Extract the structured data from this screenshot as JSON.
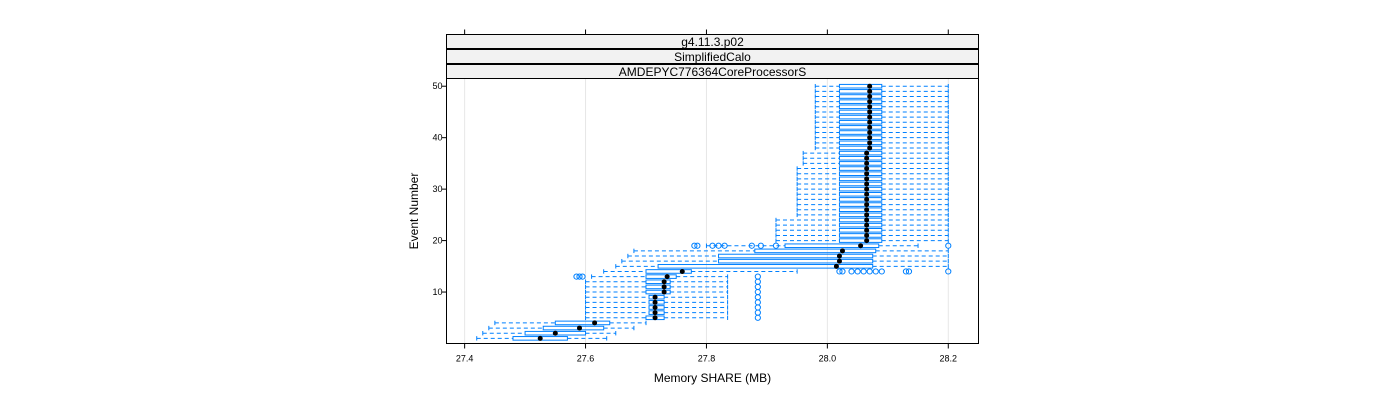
{
  "chart_data": {
    "type": "bwplot",
    "strips": [
      "g4.11.3.p02",
      "SimplifiedCalo",
      "AMDEPYC776364CoreProcessorS"
    ],
    "xlabel": "Memory SHARE (MB)",
    "ylabel": "Event Number",
    "xlim": [
      27.37,
      28.25
    ],
    "ylim": [
      0,
      51.5
    ],
    "xticks": [
      27.4,
      27.6,
      27.8,
      28.0,
      28.2
    ],
    "xtick_labels": [
      "27.4",
      "27.6",
      "27.8",
      "28.0",
      "28.2"
    ],
    "yticks": [
      10,
      20,
      30,
      40,
      50
    ],
    "ytick_labels": [
      "10",
      "20",
      "30",
      "40",
      "50"
    ],
    "grid": true,
    "colors": {
      "box": "#0080ff",
      "median": "#000000",
      "strip": "#f2f2f2"
    },
    "boxes": [
      {
        "event": 1,
        "min": 27.42,
        "q1": 27.48,
        "median": 27.525,
        "q3": 27.57,
        "max": 27.635,
        "outliers": []
      },
      {
        "event": 2,
        "min": 27.43,
        "q1": 27.5,
        "median": 27.55,
        "q3": 27.6,
        "max": 27.65,
        "outliers": []
      },
      {
        "event": 3,
        "min": 27.44,
        "q1": 27.53,
        "median": 27.59,
        "q3": 27.63,
        "max": 27.68,
        "outliers": []
      },
      {
        "event": 4,
        "min": 27.45,
        "q1": 27.55,
        "median": 27.615,
        "q3": 27.64,
        "max": 27.7,
        "outliers": []
      },
      {
        "event": 5,
        "min": 27.6,
        "q1": 27.7,
        "median": 27.715,
        "q3": 27.73,
        "max": 27.835,
        "outliers": [
          27.885
        ]
      },
      {
        "event": 6,
        "min": 27.6,
        "q1": 27.705,
        "median": 27.715,
        "q3": 27.73,
        "max": 27.835,
        "outliers": [
          27.885
        ]
      },
      {
        "event": 7,
        "min": 27.6,
        "q1": 27.705,
        "median": 27.715,
        "q3": 27.73,
        "max": 27.835,
        "outliers": [
          27.885
        ]
      },
      {
        "event": 8,
        "min": 27.6,
        "q1": 27.705,
        "median": 27.715,
        "q3": 27.73,
        "max": 27.835,
        "outliers": [
          27.885
        ]
      },
      {
        "event": 9,
        "min": 27.6,
        "q1": 27.705,
        "median": 27.715,
        "q3": 27.73,
        "max": 27.835,
        "outliers": [
          27.885
        ]
      },
      {
        "event": 10,
        "min": 27.6,
        "q1": 27.7,
        "median": 27.73,
        "q3": 27.74,
        "max": 27.835,
        "outliers": [
          27.885
        ]
      },
      {
        "event": 11,
        "min": 27.6,
        "q1": 27.7,
        "median": 27.73,
        "q3": 27.74,
        "max": 27.835,
        "outliers": [
          27.885
        ]
      },
      {
        "event": 12,
        "min": 27.6,
        "q1": 27.7,
        "median": 27.73,
        "q3": 27.74,
        "max": 27.835,
        "outliers": [
          27.885
        ]
      },
      {
        "event": 13,
        "min": 27.61,
        "q1": 27.7,
        "median": 27.735,
        "q3": 27.75,
        "max": 27.835,
        "outliers": [
          27.585,
          27.59,
          27.595,
          27.885
        ]
      },
      {
        "event": 14,
        "min": 27.63,
        "q1": 27.7,
        "median": 27.76,
        "q3": 27.775,
        "max": 27.95,
        "outliers": [
          28.02,
          28.025,
          28.04,
          28.05,
          28.06,
          28.07,
          28.08,
          28.09,
          28.13,
          28.135,
          28.2
        ]
      },
      {
        "event": 15,
        "min": 27.65,
        "q1": 27.72,
        "median": 28.015,
        "q3": 28.075,
        "max": 28.2,
        "outliers": []
      },
      {
        "event": 16,
        "min": 27.66,
        "q1": 27.82,
        "median": 28.02,
        "q3": 28.075,
        "max": 28.2,
        "outliers": []
      },
      {
        "event": 17,
        "min": 27.67,
        "q1": 27.82,
        "median": 28.02,
        "q3": 28.075,
        "max": 28.2,
        "outliers": []
      },
      {
        "event": 18,
        "min": 27.68,
        "q1": 27.88,
        "median": 28.025,
        "q3": 28.08,
        "max": 28.2,
        "outliers": []
      },
      {
        "event": 19,
        "min": 27.8,
        "q1": 27.93,
        "median": 28.055,
        "q3": 28.085,
        "max": 28.15,
        "outliers": [
          27.78,
          27.785,
          27.81,
          27.82,
          27.83,
          27.875,
          27.89,
          27.915,
          28.2
        ]
      },
      {
        "event": 20,
        "min": 27.915,
        "q1": 28.02,
        "median": 28.065,
        "q3": 28.09,
        "max": 28.2,
        "outliers": []
      },
      {
        "event": 21,
        "min": 27.915,
        "q1": 28.02,
        "median": 28.065,
        "q3": 28.09,
        "max": 28.2,
        "outliers": []
      },
      {
        "event": 22,
        "min": 27.915,
        "q1": 28.02,
        "median": 28.065,
        "q3": 28.09,
        "max": 28.2,
        "outliers": []
      },
      {
        "event": 23,
        "min": 27.915,
        "q1": 28.02,
        "median": 28.065,
        "q3": 28.09,
        "max": 28.2,
        "outliers": []
      },
      {
        "event": 24,
        "min": 27.915,
        "q1": 28.02,
        "median": 28.065,
        "q3": 28.09,
        "max": 28.2,
        "outliers": []
      },
      {
        "event": 25,
        "min": 27.95,
        "q1": 28.02,
        "median": 28.065,
        "q3": 28.09,
        "max": 28.2,
        "outliers": []
      },
      {
        "event": 26,
        "min": 27.95,
        "q1": 28.02,
        "median": 28.065,
        "q3": 28.09,
        "max": 28.2,
        "outliers": []
      },
      {
        "event": 27,
        "min": 27.95,
        "q1": 28.02,
        "median": 28.065,
        "q3": 28.09,
        "max": 28.2,
        "outliers": []
      },
      {
        "event": 28,
        "min": 27.95,
        "q1": 28.02,
        "median": 28.065,
        "q3": 28.09,
        "max": 28.2,
        "outliers": []
      },
      {
        "event": 29,
        "min": 27.95,
        "q1": 28.02,
        "median": 28.065,
        "q3": 28.09,
        "max": 28.2,
        "outliers": []
      },
      {
        "event": 30,
        "min": 27.95,
        "q1": 28.02,
        "median": 28.065,
        "q3": 28.09,
        "max": 28.2,
        "outliers": []
      },
      {
        "event": 31,
        "min": 27.95,
        "q1": 28.02,
        "median": 28.065,
        "q3": 28.09,
        "max": 28.2,
        "outliers": []
      },
      {
        "event": 32,
        "min": 27.95,
        "q1": 28.02,
        "median": 28.065,
        "q3": 28.09,
        "max": 28.2,
        "outliers": []
      },
      {
        "event": 33,
        "min": 27.95,
        "q1": 28.02,
        "median": 28.065,
        "q3": 28.09,
        "max": 28.2,
        "outliers": []
      },
      {
        "event": 34,
        "min": 27.95,
        "q1": 28.02,
        "median": 28.065,
        "q3": 28.09,
        "max": 28.2,
        "outliers": []
      },
      {
        "event": 35,
        "min": 27.96,
        "q1": 28.02,
        "median": 28.065,
        "q3": 28.09,
        "max": 28.2,
        "outliers": []
      },
      {
        "event": 36,
        "min": 27.96,
        "q1": 28.02,
        "median": 28.065,
        "q3": 28.09,
        "max": 28.2,
        "outliers": []
      },
      {
        "event": 37,
        "min": 27.96,
        "q1": 28.02,
        "median": 28.065,
        "q3": 28.09,
        "max": 28.2,
        "outliers": []
      },
      {
        "event": 38,
        "min": 27.98,
        "q1": 28.02,
        "median": 28.07,
        "q3": 28.09,
        "max": 28.2,
        "outliers": []
      },
      {
        "event": 39,
        "min": 27.98,
        "q1": 28.02,
        "median": 28.07,
        "q3": 28.09,
        "max": 28.2,
        "outliers": []
      },
      {
        "event": 40,
        "min": 27.98,
        "q1": 28.02,
        "median": 28.07,
        "q3": 28.09,
        "max": 28.2,
        "outliers": []
      },
      {
        "event": 41,
        "min": 27.98,
        "q1": 28.02,
        "median": 28.07,
        "q3": 28.09,
        "max": 28.2,
        "outliers": []
      },
      {
        "event": 42,
        "min": 27.98,
        "q1": 28.02,
        "median": 28.07,
        "q3": 28.09,
        "max": 28.2,
        "outliers": []
      },
      {
        "event": 43,
        "min": 27.98,
        "q1": 28.02,
        "median": 28.07,
        "q3": 28.09,
        "max": 28.2,
        "outliers": []
      },
      {
        "event": 44,
        "min": 27.98,
        "q1": 28.02,
        "median": 28.07,
        "q3": 28.09,
        "max": 28.2,
        "outliers": []
      },
      {
        "event": 45,
        "min": 27.98,
        "q1": 28.02,
        "median": 28.07,
        "q3": 28.09,
        "max": 28.2,
        "outliers": []
      },
      {
        "event": 46,
        "min": 27.98,
        "q1": 28.02,
        "median": 28.07,
        "q3": 28.09,
        "max": 28.2,
        "outliers": []
      },
      {
        "event": 47,
        "min": 27.98,
        "q1": 28.02,
        "median": 28.07,
        "q3": 28.09,
        "max": 28.2,
        "outliers": []
      },
      {
        "event": 48,
        "min": 27.98,
        "q1": 28.02,
        "median": 28.07,
        "q3": 28.09,
        "max": 28.2,
        "outliers": []
      },
      {
        "event": 49,
        "min": 27.98,
        "q1": 28.02,
        "median": 28.07,
        "q3": 28.09,
        "max": 28.2,
        "outliers": []
      },
      {
        "event": 50,
        "min": 27.98,
        "q1": 28.02,
        "median": 28.07,
        "q3": 28.09,
        "max": 28.2,
        "outliers": []
      }
    ]
  }
}
